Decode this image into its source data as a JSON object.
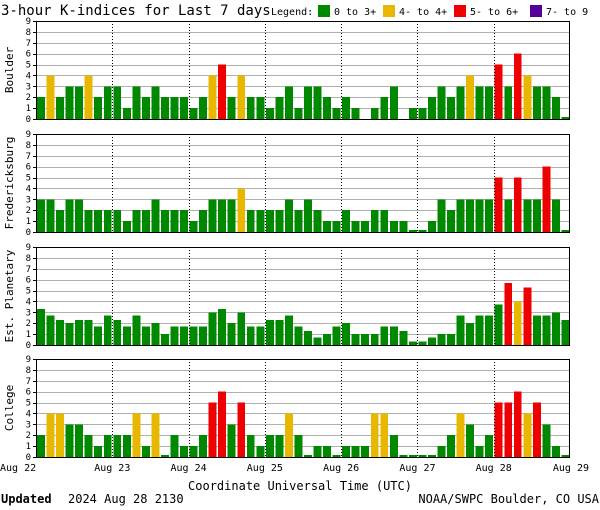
{
  "title": "3-hour K-indices for Last 7 days",
  "legend": {
    "label": "Legend:",
    "items": [
      {
        "label": "0 to 3+",
        "color": "#008800"
      },
      {
        "label": "4- to 4+",
        "color": "#e8b800"
      },
      {
        "label": "5- to 6+",
        "color": "#ee0000"
      },
      {
        "label": "7- to 9",
        "color": "#550099"
      }
    ]
  },
  "footer": {
    "updated_label": "Updated",
    "updated_value": "2024 Aug 28 2130",
    "credit": "NOAA/SWPC Boulder, CO USA"
  },
  "chart_data": {
    "type": "bar",
    "xlabel": "Coordinate Universal Time (UTC)",
    "x_ticks": [
      "Aug 22",
      "Aug 23",
      "Aug 24",
      "Aug 25",
      "Aug 26",
      "Aug 27",
      "Aug 28",
      "Aug 29"
    ],
    "y_ticks": [
      "0",
      "1",
      "2",
      "3",
      "4",
      "5",
      "6",
      "7",
      "8",
      "9"
    ],
    "ylim": [
      0,
      9
    ],
    "grid": true,
    "panels": [
      {
        "name": "Boulder",
        "values": [
          2,
          4,
          2,
          3,
          3,
          4,
          2,
          3,
          3,
          1,
          3,
          2,
          3,
          2,
          2,
          2,
          1,
          2,
          4,
          5,
          2,
          4,
          2,
          2,
          1,
          2,
          3,
          1,
          3,
          3,
          2,
          1,
          2,
          1,
          0,
          1,
          2,
          3,
          0,
          1,
          1,
          2,
          3,
          2,
          3,
          4,
          3,
          3,
          5,
          3,
          6,
          4,
          3,
          3,
          2,
          0.2
        ]
      },
      {
        "name": "Fredericksburg",
        "values": [
          3,
          3,
          2,
          3,
          3,
          2,
          2,
          2,
          2,
          1,
          2,
          2,
          3,
          2,
          2,
          2,
          1,
          2,
          3,
          3,
          3,
          4,
          2,
          2,
          2,
          2,
          3,
          2,
          3,
          2,
          1,
          1,
          2,
          1,
          1,
          2,
          2,
          1,
          1,
          0.2,
          0.2,
          1,
          3,
          2,
          3,
          3,
          3,
          3,
          5,
          3,
          5,
          3,
          3,
          6,
          3,
          0.2
        ]
      },
      {
        "name": "Est. Planetary",
        "values": [
          3.3,
          2.7,
          2.3,
          2.0,
          2.3,
          2.3,
          1.7,
          2.7,
          2.3,
          1.7,
          2.7,
          1.7,
          2.0,
          1.0,
          1.7,
          1.7,
          1.7,
          1.7,
          3.0,
          3.3,
          2.0,
          3.0,
          1.7,
          1.7,
          2.3,
          2.3,
          2.7,
          1.7,
          1.3,
          0.7,
          1.0,
          1.7,
          2.0,
          1.0,
          1.0,
          1.0,
          1.7,
          1.7,
          1.3,
          0.3,
          0.3,
          0.7,
          1.0,
          1.0,
          2.7,
          2.0,
          2.7,
          2.7,
          3.7,
          5.7,
          4.0,
          5.3,
          2.7,
          2.7,
          3.0,
          2.3
        ]
      },
      {
        "name": "College",
        "values": [
          2,
          4,
          4,
          3,
          3,
          2,
          1,
          2,
          2,
          2,
          4,
          1,
          4,
          0.2,
          2,
          1,
          1,
          2,
          5,
          6,
          3,
          5,
          2,
          1,
          2,
          2,
          4,
          2,
          0.2,
          1,
          1,
          0.2,
          1,
          1,
          1,
          4,
          4,
          2,
          0.2,
          0.2,
          0.2,
          0.2,
          1,
          2,
          4,
          3,
          1,
          2,
          5,
          5,
          6,
          4,
          5,
          3,
          1,
          0.2
        ]
      }
    ]
  }
}
